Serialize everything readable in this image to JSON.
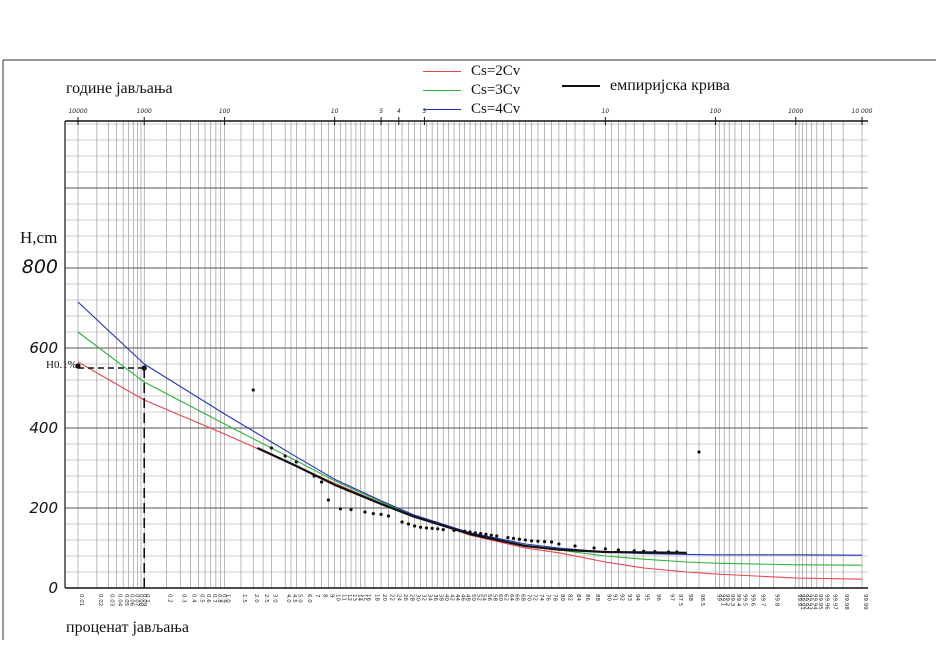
{
  "chart_data": {
    "type": "line",
    "x_scale": "probability",
    "ylabel": "H,cm",
    "top_axis_label": "године јављања",
    "bottom_axis_label": "проценат јављања",
    "ylim": [
      0,
      800
    ],
    "yticks": [
      0,
      200,
      400,
      600,
      800
    ],
    "top_ticks": [
      "10000",
      "1000",
      "100",
      "10",
      "5",
      "4",
      "3",
      "10",
      "100",
      "1000",
      "10 000"
    ],
    "bottom_ticks": [
      "0.01",
      "0.02",
      "0.03",
      "0.04",
      "0.05",
      "0.06",
      "0.07",
      "0.08",
      "0.09",
      "0.1",
      "0.2",
      "0.3",
      "0.4",
      "0.5",
      "0.6",
      "0.7",
      "0.8",
      "0.9",
      "1.0",
      "1.5",
      "2.0",
      "2.5",
      "3.0",
      "4.0",
      "4.5",
      "5.0",
      "6.0",
      "7",
      "8",
      "9",
      "10",
      "11",
      "12",
      "13",
      "14",
      "15",
      "16",
      "18",
      "20",
      "22",
      "24",
      "26",
      "28",
      "30",
      "32",
      "34",
      "36",
      "38",
      "40",
      "42",
      "44",
      "46",
      "48",
      "50",
      "52",
      "54",
      "56",
      "58",
      "60",
      "62",
      "64",
      "66",
      "68",
      "70",
      "72",
      "74",
      "76",
      "78",
      "80",
      "82",
      "84",
      "86",
      "88",
      "90",
      "91",
      "92",
      "93",
      "94",
      "95",
      "96",
      "97",
      "97.5",
      "98",
      "98.5",
      "99",
      "99.1",
      "99.2",
      "99.3",
      "99.4",
      "99.5",
      "99.6",
      "99.7",
      "99.8",
      "99.9",
      "99.91",
      "99.92",
      "99.93",
      "99.94",
      "99.95",
      "99.96",
      "99.97",
      "99.98",
      "99.99"
    ],
    "grid": true,
    "series": [
      {
        "name": "Cs=2Cv",
        "color": "#e8434a",
        "x": [
          0.01,
          0.1,
          1,
          5,
          10,
          20,
          30,
          50,
          70,
          80,
          90,
          95,
          98,
          99,
          99.9,
          99.99
        ],
        "y": [
          565,
          470,
          385,
          305,
          262,
          212,
          180,
          132,
          100,
          88,
          65,
          50,
          40,
          35,
          25,
          22
        ]
      },
      {
        "name": "Cs=3Cv",
        "color": "#2db33a",
        "x": [
          0.01,
          0.1,
          1,
          5,
          10,
          20,
          30,
          50,
          70,
          80,
          90,
          95,
          98,
          99,
          99.9,
          99.99
        ],
        "y": [
          640,
          515,
          410,
          318,
          268,
          215,
          180,
          135,
          105,
          95,
          80,
          72,
          65,
          62,
          58,
          57
        ]
      },
      {
        "name": "Cs=4Cv",
        "color": "#2434b8",
        "x": [
          0.01,
          0.1,
          1,
          5,
          10,
          20,
          30,
          50,
          70,
          80,
          90,
          95,
          98,
          99,
          99.9,
          99.99
        ],
        "y": [
          715,
          560,
          435,
          328,
          272,
          218,
          182,
          138,
          110,
          100,
          90,
          86,
          84,
          83,
          83,
          82
        ]
      },
      {
        "name": "емпиријска крива",
        "color": "#111111",
        "x": [
          2.2,
          5,
          10,
          20,
          30,
          50,
          70,
          80,
          90,
          95,
          98
        ],
        "y": [
          350,
          305,
          258,
          210,
          178,
          135,
          105,
          96,
          90,
          89,
          88
        ]
      }
    ],
    "observed_points": {
      "x": [
        2.0,
        3.0,
        4.0,
        5.0,
        7,
        8,
        9,
        11,
        13,
        16,
        18,
        20,
        22,
        26,
        28,
        30,
        32,
        34,
        36,
        38,
        40,
        44,
        48,
        50,
        52,
        54,
        56,
        58,
        60,
        64,
        66,
        68,
        70,
        72,
        74,
        76,
        78,
        80,
        84,
        88,
        90,
        92,
        94,
        95,
        96,
        97,
        97.5,
        98.5
      ],
      "y": [
        495,
        350,
        330,
        315,
        280,
        265,
        220,
        198,
        196,
        190,
        186,
        184,
        180,
        165,
        160,
        155,
        152,
        150,
        149,
        148,
        146,
        144,
        142,
        140,
        138,
        136,
        134,
        132,
        130,
        126,
        124,
        122,
        120,
        118,
        117,
        116,
        115,
        110,
        105,
        100,
        98,
        95,
        93,
        92,
        91,
        90,
        90,
        340
      ]
    },
    "annotation": {
      "text": "H0.1%",
      "x": 0.1,
      "y": 560
    }
  }
}
